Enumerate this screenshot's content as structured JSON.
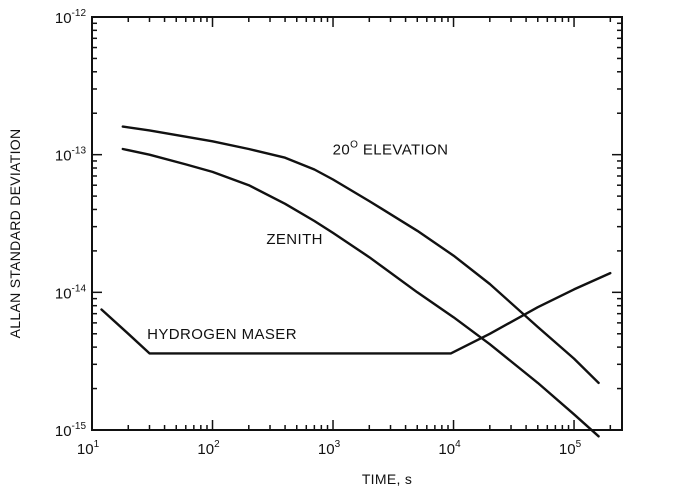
{
  "chart_data": {
    "type": "line",
    "xscale": "log",
    "yscale": "log",
    "xlim": [
      10,
      250000
    ],
    "ylim": [
      1e-15,
      1e-12
    ],
    "grid": false,
    "xlabel": "TIME, s",
    "ylabel": "ALLAN STANDARD DEVIATION",
    "x_ticks": [
      {
        "value": 10,
        "base": "10",
        "exp": "1"
      },
      {
        "value": 100,
        "base": "10",
        "exp": "2"
      },
      {
        "value": 1000,
        "base": "10",
        "exp": "3"
      },
      {
        "value": 10000,
        "base": "10",
        "exp": "4"
      },
      {
        "value": 100000,
        "base": "10",
        "exp": "5"
      }
    ],
    "y_ticks": [
      {
        "value": 1e-15,
        "base": "10",
        "exp": "-15"
      },
      {
        "value": 1e-14,
        "base": "10",
        "exp": "-14"
      },
      {
        "value": 1e-13,
        "base": "10",
        "exp": "-13"
      },
      {
        "value": 1e-12,
        "base": "10",
        "exp": "-12"
      }
    ],
    "series": [
      {
        "name": "20° ELEVATION",
        "label_base": "20",
        "label_sup": "O",
        "label_rest": " ELEVATION",
        "x": [
          18,
          30,
          60,
          100,
          200,
          400,
          700,
          1000,
          2000,
          5000,
          10000,
          20000,
          50000,
          100000,
          160000
        ],
        "y": [
          1.6e-13,
          1.5e-13,
          1.35e-13,
          1.25e-13,
          1.1e-13,
          9.5e-14,
          7.8e-14,
          6.6e-14,
          4.6e-14,
          2.8e-14,
          1.85e-14,
          1.15e-14,
          5.6e-15,
          3.3e-15,
          2.2e-15
        ]
      },
      {
        "name": "ZENITH",
        "label_base": "ZENITH",
        "label_sup": "",
        "label_rest": "",
        "x": [
          18,
          30,
          60,
          100,
          200,
          400,
          700,
          1000,
          2000,
          5000,
          10000,
          20000,
          50000,
          100000,
          160000
        ],
        "y": [
          1.1e-13,
          1e-13,
          8.5e-14,
          7.5e-14,
          6e-14,
          4.4e-14,
          3.3e-14,
          2.7e-14,
          1.8e-14,
          1e-14,
          6.6e-15,
          4.2e-15,
          2.2e-15,
          1.3e-15,
          9e-16
        ]
      },
      {
        "name": "HYDROGEN MASER",
        "label_base": "HYDROGEN MASER",
        "label_sup": "",
        "label_rest": "",
        "x": [
          12,
          20,
          30,
          100,
          1000,
          9500,
          20000,
          50000,
          100000,
          200000
        ],
        "y": [
          7.5e-15,
          5e-15,
          3.6e-15,
          3.6e-15,
          3.6e-15,
          3.6e-15,
          5e-15,
          7.8e-15,
          1.05e-14,
          1.38e-14
        ]
      }
    ],
    "annotations": [
      {
        "series": 0,
        "at_x": 3000,
        "at_y": 1e-13
      },
      {
        "series": 1,
        "at_x": 480,
        "at_y": 2.25e-14
      },
      {
        "series": 2,
        "at_x": 120,
        "at_y": 4.6e-15
      }
    ]
  }
}
